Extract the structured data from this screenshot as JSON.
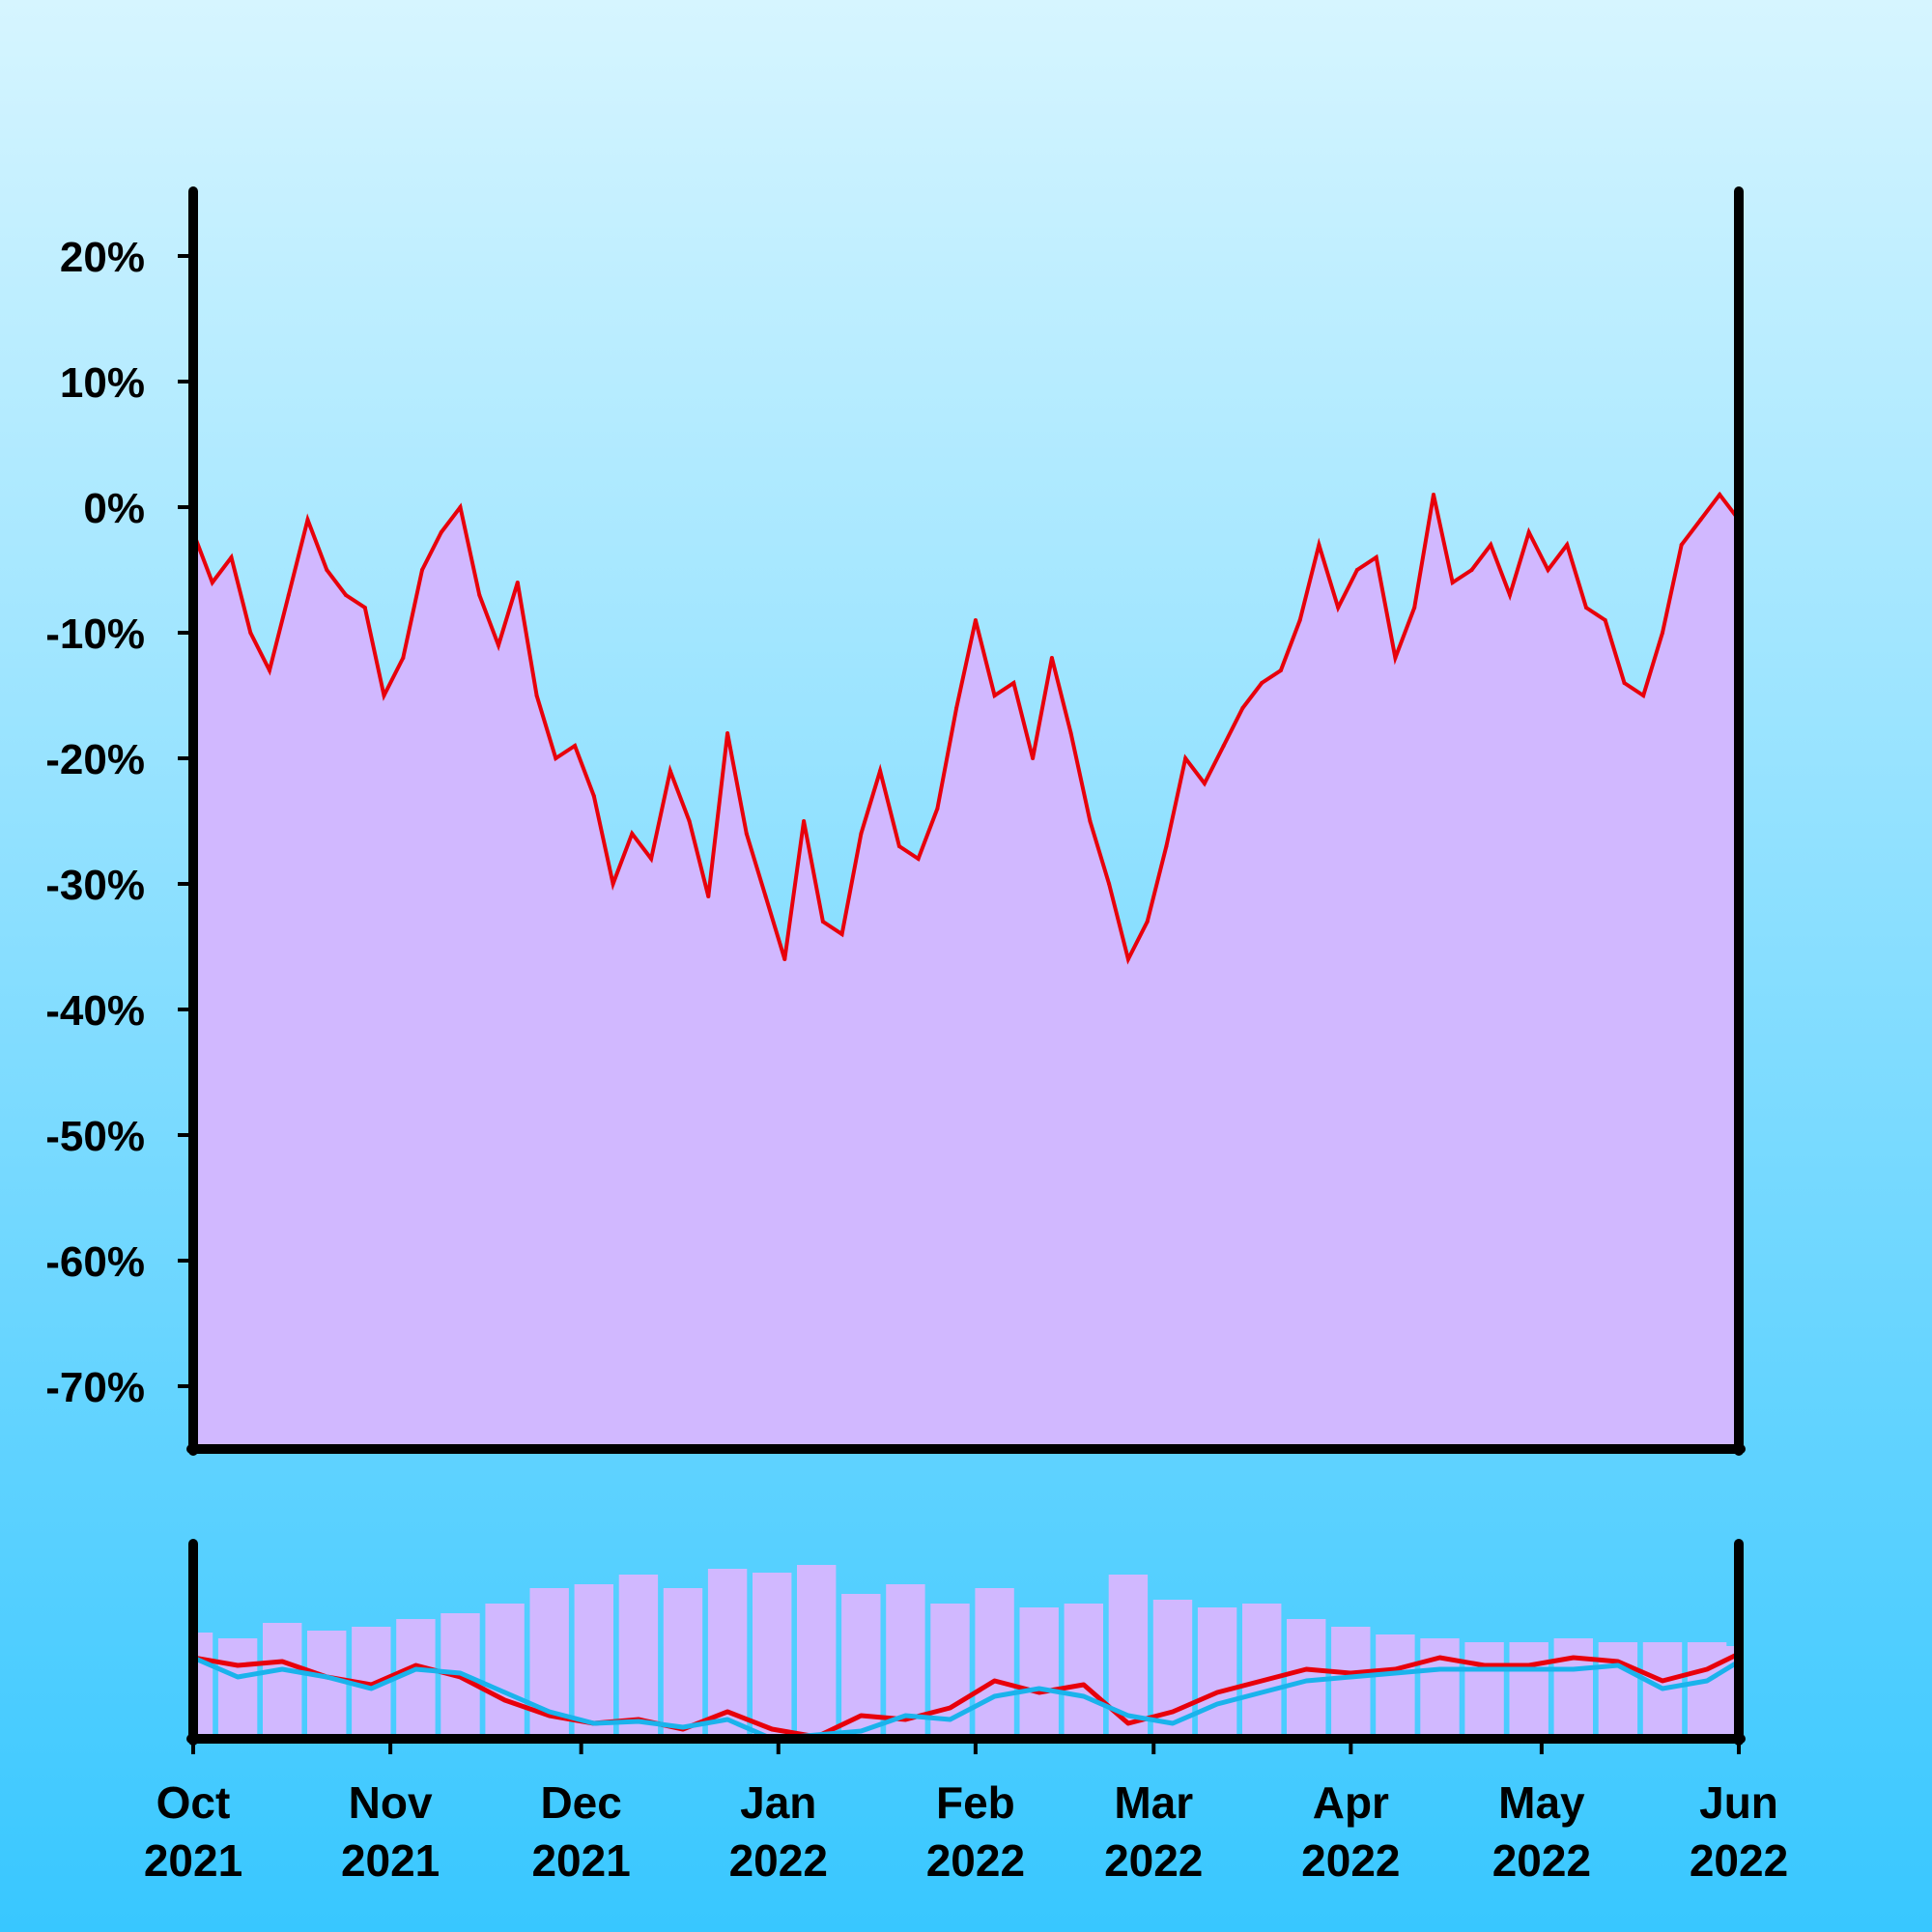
{
  "colors": {
    "background_top": "#d6f5ff",
    "background_bottom": "#38c7ff",
    "area_fill": "#d1b8ff",
    "main_line": "#e8000b",
    "secondary_line": "#1ab3ec",
    "axis": "#000000"
  },
  "chart_data": [
    {
      "type": "area",
      "panel": "main",
      "x_axis_type": "date",
      "xlim": [
        "2021-10-01",
        "2022-06-01"
      ],
      "ylim": [
        -75,
        25
      ],
      "y_unit": "%",
      "y_ticks": [
        20,
        10,
        0,
        -10,
        -20,
        -30,
        -40,
        -50,
        -60,
        -70
      ],
      "y_tick_labels": [
        "20%",
        "10%",
        "0%",
        "-10%",
        "-20%",
        "-30%",
        "-40%",
        "-50%",
        "-60%",
        "-70%"
      ],
      "grid": false,
      "series": [
        {
          "x": [
            "2021-10-01",
            "2021-10-04",
            "2021-10-07",
            "2021-10-10",
            "2021-10-13",
            "2021-10-16",
            "2021-10-19",
            "2021-10-22",
            "2021-10-25",
            "2021-10-28",
            "2021-10-31",
            "2021-11-03",
            "2021-11-06",
            "2021-11-09",
            "2021-11-12",
            "2021-11-15",
            "2021-11-18",
            "2021-11-21",
            "2021-11-24",
            "2021-11-27",
            "2021-11-30",
            "2021-12-03",
            "2021-12-06",
            "2021-12-09",
            "2021-12-12",
            "2021-12-15",
            "2021-12-18",
            "2021-12-21",
            "2021-12-24",
            "2021-12-27",
            "2021-12-30",
            "2022-01-02",
            "2022-01-05",
            "2022-01-08",
            "2022-01-11",
            "2022-01-14",
            "2022-01-17",
            "2022-01-20",
            "2022-01-23",
            "2022-01-26",
            "2022-01-29",
            "2022-02-01",
            "2022-02-04",
            "2022-02-07",
            "2022-02-10",
            "2022-02-13",
            "2022-02-16",
            "2022-02-19",
            "2022-02-22",
            "2022-02-25",
            "2022-02-28",
            "2022-03-03",
            "2022-03-06",
            "2022-03-09",
            "2022-03-12",
            "2022-03-15",
            "2022-03-18",
            "2022-03-21",
            "2022-03-24",
            "2022-03-27",
            "2022-03-30",
            "2022-04-02",
            "2022-04-05",
            "2022-04-08",
            "2022-04-11",
            "2022-04-14",
            "2022-04-17",
            "2022-04-20",
            "2022-04-23",
            "2022-04-26",
            "2022-04-29",
            "2022-05-02",
            "2022-05-05",
            "2022-05-08",
            "2022-05-11",
            "2022-05-14",
            "2022-05-17",
            "2022-05-20",
            "2022-05-23",
            "2022-05-26",
            "2022-05-29",
            "2022-06-01"
          ],
          "values": [
            -2,
            -6,
            -4,
            -10,
            -13,
            -7,
            -1,
            -5,
            -7,
            -8,
            -15,
            -12,
            -5,
            -2,
            0,
            -7,
            -11,
            -6,
            -15,
            -20,
            -19,
            -23,
            -30,
            -26,
            -28,
            -21,
            -25,
            -31,
            -18,
            -26,
            -31,
            -36,
            -25,
            -33,
            -34,
            -26,
            -21,
            -27,
            -28,
            -24,
            -16,
            -9,
            -15,
            -14,
            -20,
            -12,
            -18,
            -25,
            -30,
            -36,
            -33,
            -27,
            -20,
            -22,
            -19,
            -16,
            -14,
            -13,
            -9,
            -3,
            -8,
            -5,
            -4,
            -12,
            -8,
            1,
            -6,
            -5,
            -3,
            -7,
            -2,
            -5,
            -3,
            -8,
            -9,
            -14,
            -15,
            -10,
            -3,
            -1,
            1,
            -1
          ]
        }
      ]
    },
    {
      "type": "bar",
      "panel": "overview",
      "x_axis_type": "date",
      "xlim": [
        "2021-10-01",
        "2022-06-01"
      ],
      "x_ticks": [
        "2021-10-01",
        "2021-11-01",
        "2021-12-01",
        "2022-01-01",
        "2022-02-01",
        "2022-03-01",
        "2022-04-01",
        "2022-05-01",
        "2022-06-01"
      ],
      "x_tick_labels": [
        {
          "month": "Oct",
          "year": "2021"
        },
        {
          "month": "Nov",
          "year": "2021"
        },
        {
          "month": "Dec",
          "year": "2021"
        },
        {
          "month": "Jan",
          "year": "2022"
        },
        {
          "month": "Feb",
          "year": "2022"
        },
        {
          "month": "Mar",
          "year": "2022"
        },
        {
          "month": "Apr",
          "year": "2022"
        },
        {
          "month": "May",
          "year": "2022"
        },
        {
          "month": "Jun",
          "year": "2022"
        }
      ],
      "ylim": [
        0,
        1
      ],
      "series": [
        {
          "kind": "bars",
          "x": [
            "2021-10-01",
            "2021-10-08",
            "2021-10-15",
            "2021-10-22",
            "2021-10-29",
            "2021-11-05",
            "2021-11-12",
            "2021-11-19",
            "2021-11-26",
            "2021-12-03",
            "2021-12-10",
            "2021-12-17",
            "2021-12-24",
            "2021-12-31",
            "2022-01-07",
            "2022-01-14",
            "2022-01-21",
            "2022-01-28",
            "2022-02-04",
            "2022-02-11",
            "2022-02-18",
            "2022-02-25",
            "2022-03-04",
            "2022-03-11",
            "2022-03-18",
            "2022-03-25",
            "2022-04-01",
            "2022-04-08",
            "2022-04-15",
            "2022-04-22",
            "2022-04-29",
            "2022-05-06",
            "2022-05-13",
            "2022-05-20",
            "2022-05-27",
            "2022-06-01"
          ],
          "values": [
            0.55,
            0.52,
            0.6,
            0.56,
            0.58,
            0.62,
            0.65,
            0.7,
            0.78,
            0.8,
            0.85,
            0.78,
            0.88,
            0.86,
            0.9,
            0.75,
            0.8,
            0.7,
            0.78,
            0.68,
            0.7,
            0.85,
            0.72,
            0.68,
            0.7,
            0.62,
            0.58,
            0.54,
            0.52,
            0.5,
            0.5,
            0.52,
            0.5,
            0.5,
            0.5,
            0.48
          ]
        },
        {
          "kind": "line",
          "x": [
            "2021-10-01",
            "2021-10-08",
            "2021-10-15",
            "2021-10-22",
            "2021-10-29",
            "2021-11-05",
            "2021-11-12",
            "2021-11-19",
            "2021-11-26",
            "2021-12-03",
            "2021-12-10",
            "2021-12-17",
            "2021-12-24",
            "2021-12-31",
            "2022-01-07",
            "2022-01-14",
            "2022-01-21",
            "2022-01-28",
            "2022-02-04",
            "2022-02-11",
            "2022-02-18",
            "2022-02-25",
            "2022-03-04",
            "2022-03-11",
            "2022-03-18",
            "2022-03-25",
            "2022-04-01",
            "2022-04-08",
            "2022-04-15",
            "2022-04-22",
            "2022-04-29",
            "2022-05-06",
            "2022-05-13",
            "2022-05-20",
            "2022-05-27",
            "2022-06-01"
          ],
          "values": [
            0.42,
            0.38,
            0.4,
            0.32,
            0.28,
            0.38,
            0.32,
            0.2,
            0.12,
            0.08,
            0.1,
            0.05,
            0.14,
            0.05,
            0.01,
            0.12,
            0.1,
            0.16,
            0.3,
            0.24,
            0.28,
            0.08,
            0.14,
            0.24,
            0.3,
            0.36,
            0.34,
            0.36,
            0.42,
            0.38,
            0.38,
            0.42,
            0.4,
            0.3,
            0.36,
            0.44
          ]
        },
        {
          "kind": "line",
          "x": [
            "2021-10-01",
            "2021-10-08",
            "2021-10-15",
            "2021-10-22",
            "2021-10-29",
            "2021-11-05",
            "2021-11-12",
            "2021-11-19",
            "2021-11-26",
            "2021-12-03",
            "2021-12-10",
            "2021-12-17",
            "2021-12-24",
            "2021-12-31",
            "2022-01-07",
            "2022-01-14",
            "2022-01-21",
            "2022-01-28",
            "2022-02-04",
            "2022-02-11",
            "2022-02-18",
            "2022-02-25",
            "2022-03-04",
            "2022-03-11",
            "2022-03-18",
            "2022-03-25",
            "2022-04-01",
            "2022-04-08",
            "2022-04-15",
            "2022-04-22",
            "2022-04-29",
            "2022-05-06",
            "2022-05-13",
            "2022-05-20",
            "2022-05-27",
            "2022-06-01"
          ],
          "values": [
            0.42,
            0.32,
            0.36,
            0.32,
            0.26,
            0.36,
            0.34,
            0.24,
            0.14,
            0.08,
            0.09,
            0.06,
            0.1,
            0.0,
            0.02,
            0.04,
            0.12,
            0.1,
            0.22,
            0.26,
            0.22,
            0.12,
            0.08,
            0.18,
            0.24,
            0.3,
            0.32,
            0.34,
            0.36,
            0.36,
            0.36,
            0.36,
            0.38,
            0.26,
            0.3,
            0.4
          ]
        }
      ]
    }
  ]
}
